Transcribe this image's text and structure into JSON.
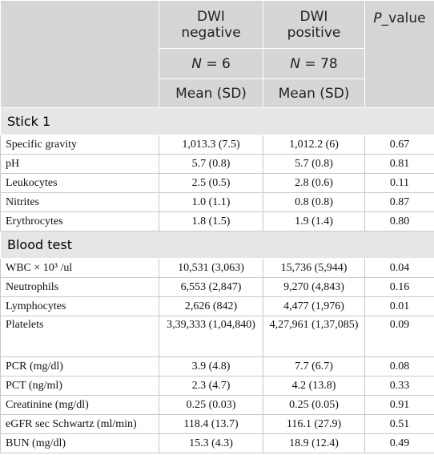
{
  "header": {
    "groups": [
      "DWI negative",
      "DWI positive"
    ],
    "p_value": {
      "italic": "P",
      "rest": "_value"
    },
    "n": [
      {
        "italic": "N",
        "rest": " = 6"
      },
      {
        "italic": "N",
        "rest": " = 78"
      }
    ],
    "stat": [
      "Mean (SD)",
      "Mean (SD)"
    ]
  },
  "sections": [
    {
      "title": "Stick 1",
      "rows": [
        [
          "Specific gravity",
          "1,013.3 (7.5)",
          "1,012.2 (6)",
          "0.67"
        ],
        [
          "pH",
          "5.7 (0.8)",
          "5.7 (0.8)",
          "0.81"
        ],
        [
          "Leukocytes",
          "2.5 (0.5)",
          "2.8 (0.6)",
          "0.11"
        ],
        [
          "Nitrites",
          "1.0 (1.1)",
          "0.8 (0.8)",
          "0.87"
        ],
        [
          "Erythrocytes",
          "1.8 (1.5)",
          "1.9 (1.4)",
          "0.80"
        ]
      ]
    },
    {
      "title": "Blood test",
      "rows": [
        [
          "WBC × 10³ /ul",
          "10,531 (3,063)",
          "15,736 (5,944)",
          "0.04"
        ],
        [
          "Neutrophils",
          "6,553 (2,847)",
          "9,270 (4,843)",
          "0.16"
        ],
        [
          "Lymphocytes",
          "2,626 (842)",
          "4,477 (1,976)",
          "0.01"
        ],
        [
          "Platelets",
          "3,39,333 (1,04,840)",
          "4,27,961 (1,37,085)",
          "0.09"
        ],
        [
          "PCR (mg/dl)",
          "3.9 (4.8)",
          "7.7 (6.7)",
          "0.08"
        ],
        [
          "PCT (ng/ml)",
          "2.3 (4.7)",
          "4.2 (13.8)",
          "0.33"
        ],
        [
          "Creatinine (mg/dl)",
          "0.25 (0.03)",
          "0.25 (0.05)",
          "0.91"
        ],
        [
          "eGFR sec Schwartz (ml/min)",
          "118.4 (13.7)",
          "116.1 (27.9)",
          "0.51"
        ],
        [
          "BUN (mg/dl)",
          "15.3 (4.3)",
          "18.9 (12.4)",
          "0.49"
        ]
      ]
    }
  ]
}
